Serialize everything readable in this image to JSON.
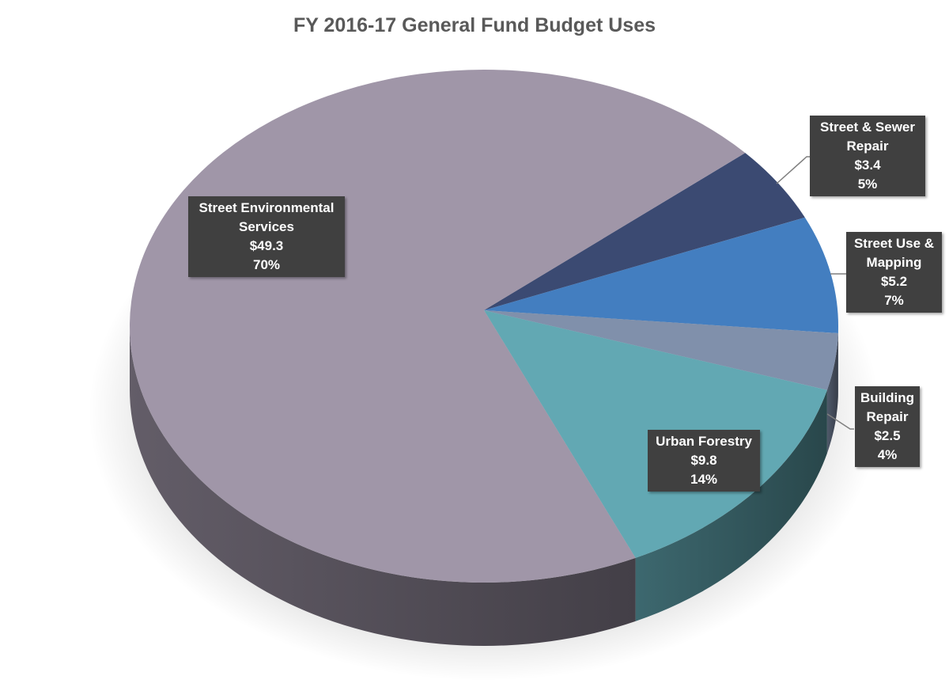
{
  "chart_data": {
    "type": "pie",
    "title": "FY 2016-17 General Fund Budget Uses",
    "three_d": true,
    "slices": [
      {
        "name": "Street & Sewer Repair",
        "name_lines": [
          "Street & Sewer",
          "Repair"
        ],
        "value": 3.4,
        "value_label": "$3.4",
        "percent_label": "5%",
        "color": "#3B4A72"
      },
      {
        "name": "Street Use & Mapping",
        "name_lines": [
          "Street Use &",
          "Mapping"
        ],
        "value": 5.2,
        "value_label": "$5.2",
        "percent_label": "7%",
        "color": "#437EC0"
      },
      {
        "name": "Building Repair",
        "name_lines": [
          "Building",
          "Repair"
        ],
        "value": 2.5,
        "value_label": "$2.5",
        "percent_label": "4%",
        "color": "#8090AB"
      },
      {
        "name": "Urban Forestry",
        "name_lines": [
          "Urban Forestry"
        ],
        "value": 9.8,
        "value_label": "$9.8",
        "percent_label": "14%",
        "color": "#62A8B3"
      },
      {
        "name": "Street Environmental Services",
        "name_lines": [
          "Street Environmental",
          "Services"
        ],
        "value": 49.3,
        "value_label": "$49.3",
        "percent_label": "70%",
        "color": "#A096A8"
      }
    ]
  }
}
